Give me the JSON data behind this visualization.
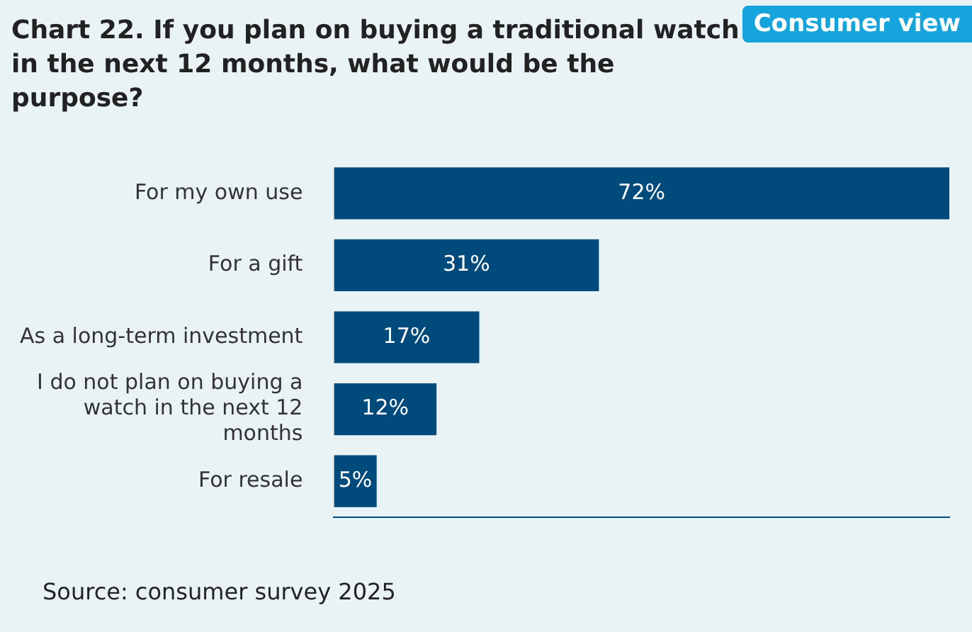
{
  "chart_data": {
    "type": "bar",
    "orientation": "horizontal",
    "title": "Chart 22. If you plan on buying a traditional watch in the next 12 months, what would be the purpose?",
    "subtitle": "Consumer view",
    "categories": [
      "For my own use",
      "For a gift",
      "As a long-term investment",
      "I do not plan on buying a watch in the next 12 months",
      "For resale"
    ],
    "values": [
      72,
      31,
      17,
      12,
      5
    ],
    "value_labels": [
      "72%",
      "31%",
      "17%",
      "12%",
      "5%"
    ],
    "color": "#004a7c",
    "annotations": [
      "Source: consumer survey 2025"
    ]
  }
}
